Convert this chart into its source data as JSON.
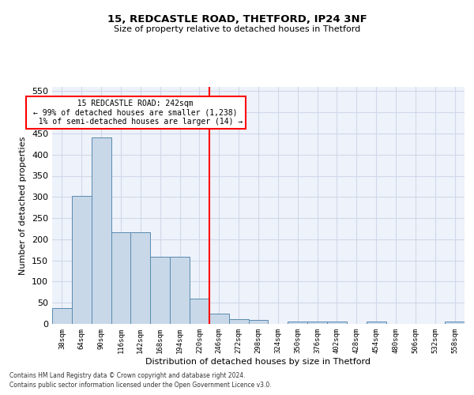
{
  "title1": "15, REDCASTLE ROAD, THETFORD, IP24 3NF",
  "title2": "Size of property relative to detached houses in Thetford",
  "xlabel": "Distribution of detached houses by size in Thetford",
  "ylabel": "Number of detached properties",
  "bin_labels": [
    "38sqm",
    "64sqm",
    "90sqm",
    "116sqm",
    "142sqm",
    "168sqm",
    "194sqm",
    "220sqm",
    "246sqm",
    "272sqm",
    "298sqm",
    "324sqm",
    "350sqm",
    "376sqm",
    "402sqm",
    "428sqm",
    "454sqm",
    "480sqm",
    "506sqm",
    "532sqm",
    "558sqm"
  ],
  "bar_values": [
    37,
    303,
    441,
    216,
    216,
    158,
    158,
    59,
    25,
    12,
    9,
    0,
    5,
    6,
    6,
    0,
    5,
    0,
    0,
    0,
    5
  ],
  "bar_color": "#c8d8e8",
  "bar_edge_color": "#5a8ab0",
  "vline_x_index": 8,
  "vline_label": "15 REDCASTLE ROAD: 242sqm",
  "pct_smaller": "99% of detached houses are smaller (1,238)",
  "pct_larger": "1% of semi-detached houses are larger (14)",
  "annotation_box_color": "#cc0000",
  "ylim": [
    0,
    560
  ],
  "yticks": [
    0,
    50,
    100,
    150,
    200,
    250,
    300,
    350,
    400,
    450,
    500,
    550
  ],
  "grid_color": "#d0d8e8",
  "bg_color": "#eef2fa",
  "footer1": "Contains HM Land Registry data © Crown copyright and database right 2024.",
  "footer2": "Contains public sector information licensed under the Open Government Licence v3.0."
}
